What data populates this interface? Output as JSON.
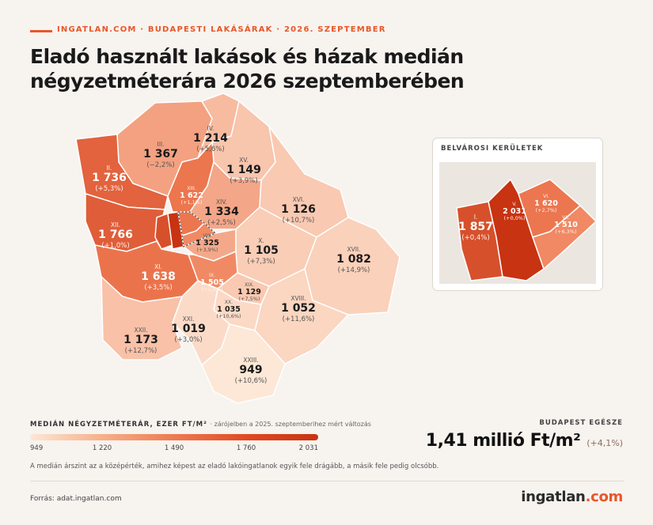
{
  "header": {
    "kicker": "INGATLAN.COM · BUDAPESTI LAKÁSÁRAK · 2026. SZEPTEMBER",
    "title": "Eladó használt lakások és házak medián négyzetméterára 2026 szeptemberében"
  },
  "colors": {
    "accent": "#e8572a",
    "scale_low": "#fde7d6",
    "scale_high": "#c83312",
    "background": "#f7f3ef"
  },
  "districts": [
    {
      "roman": "I.",
      "value": "1 857",
      "change": "(+0,4%)"
    },
    {
      "roman": "II.",
      "value": "1 736",
      "change": "(+5,3%)"
    },
    {
      "roman": "III.",
      "value": "1 367",
      "change": "(−2,2%)"
    },
    {
      "roman": "IV.",
      "value": "1 214",
      "change": "(+5,6%)"
    },
    {
      "roman": "V.",
      "value": "2 031",
      "change": "(+0,0%)"
    },
    {
      "roman": "VI.",
      "value": "1 620",
      "change": "(+2,7%)"
    },
    {
      "roman": "VII.",
      "value": "1 510",
      "change": "(+6,3%)"
    },
    {
      "roman": "VIII.",
      "value": "1 325",
      "change": "(+3,9%)"
    },
    {
      "roman": "IX.",
      "value": "1 505",
      "change": "(−1,0%)"
    },
    {
      "roman": "X.",
      "value": "1 105",
      "change": "(+7,3%)"
    },
    {
      "roman": "XI.",
      "value": "1 638",
      "change": "(+3,5%)"
    },
    {
      "roman": "XII.",
      "value": "1 766",
      "change": "(+1,0%)"
    },
    {
      "roman": "XIII.",
      "value": "1 622",
      "change": "(+1,1%)"
    },
    {
      "roman": "XIV.",
      "value": "1 334",
      "change": "(+2,5%)"
    },
    {
      "roman": "XV.",
      "value": "1 149",
      "change": "(+3,9%)"
    },
    {
      "roman": "XVI.",
      "value": "1 126",
      "change": "(+10,7%)"
    },
    {
      "roman": "XVII.",
      "value": "1 082",
      "change": "(+14,9%)"
    },
    {
      "roman": "XVIII.",
      "value": "1 052",
      "change": "(+11,6%)"
    },
    {
      "roman": "XIX.",
      "value": "1 129",
      "change": "(+7,5%)"
    },
    {
      "roman": "XX.",
      "value": "1 035",
      "change": "(+10,6%)"
    },
    {
      "roman": "XXI.",
      "value": "1 019",
      "change": "(+3,0%)"
    },
    {
      "roman": "XXII.",
      "value": "1 173",
      "change": "(+12,7%)"
    },
    {
      "roman": "XXIII.",
      "value": "949",
      "change": "(+10,6%)"
    }
  ],
  "inset": {
    "title": "BELVÁROSI KERÜLETEK"
  },
  "legend": {
    "title": "MEDIÁN NÉGYZETMÉTERÁR, EZER FT/M²",
    "note": "· zárójelben a 2025. szeptemberihez mért változás",
    "ticks": [
      "949",
      "1 220",
      "1 490",
      "1 760",
      "2 031"
    ]
  },
  "summary": {
    "label": "BUDAPEST EGÉSZE",
    "value": "1,41 millió Ft/m²",
    "change": "(+4,1%)"
  },
  "footnote": "A medián árszint az a középérték, amihez képest az eladó lakóingatlanok egyik fele drágább, a másik fele pedig olcsóbb.",
  "source": "Forrás: adat.ingatlan.com",
  "logo": {
    "main": "ingatlan",
    "suffix": ".com"
  }
}
